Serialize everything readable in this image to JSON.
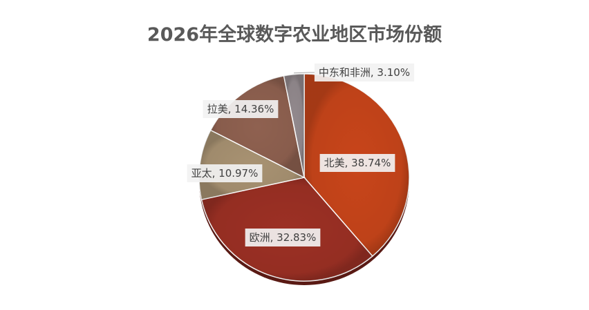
{
  "chart_data": {
    "type": "pie",
    "title": "2026年全球数字农业地区市场份额",
    "slices": [
      {
        "name": "北美",
        "value": 38.74,
        "label": "北美, 38.74%",
        "color": "#C8451A"
      },
      {
        "name": "欧洲",
        "value": 32.83,
        "label": "欧洲, 32.83%",
        "color": "#9C3024"
      },
      {
        "name": "亚太",
        "value": 10.97,
        "label": "亚太, 10.97%",
        "color": "#A89272"
      },
      {
        "name": "拉美",
        "value": 14.36,
        "label": "拉美, 14.36%",
        "color": "#8F6150"
      },
      {
        "name": "中东和非洲",
        "value": 3.1,
        "label": "中东和非洲, 3.10%",
        "color": "#938A8E"
      }
    ],
    "start_angle_deg": 0,
    "direction": "clockwise",
    "legend": "none"
  }
}
